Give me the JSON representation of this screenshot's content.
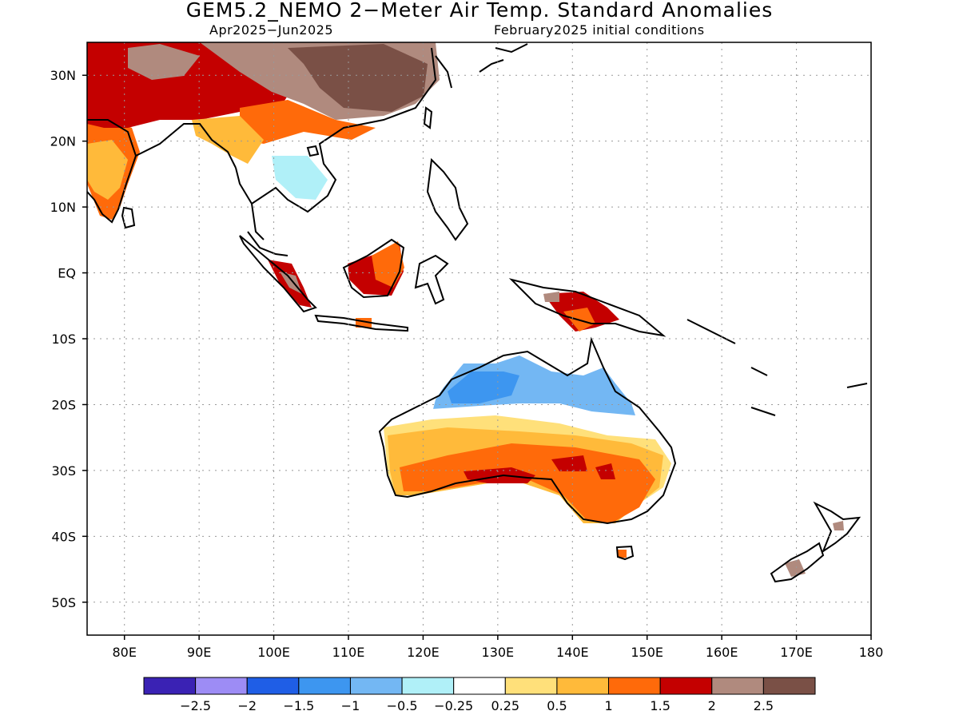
{
  "title": "GEM5.2_NEMO 2−Meter Air Temp. Standard Anomalies",
  "subtitle_left": "Apr2025−Jun2025",
  "subtitle_right": "February2025 initial conditions",
  "map": {
    "lon_range": [
      75,
      180
    ],
    "lat_range": [
      -55,
      35
    ],
    "lon_ticks": [
      "80E",
      "90E",
      "100E",
      "110E",
      "120E",
      "130E",
      "140E",
      "150E",
      "160E",
      "170E",
      "180"
    ],
    "lat_ticks": [
      "30N",
      "20N",
      "10N",
      "EQ",
      "10S",
      "20S",
      "30S",
      "40S",
      "50S"
    ],
    "gridlines": true
  },
  "colorbar": {
    "colors": [
      "#3a22b4",
      "#9d8cf5",
      "#1f5ee6",
      "#3d96f0",
      "#73b7f3",
      "#b0f0f8",
      "#ffffff",
      "#ffe07a",
      "#ffba3a",
      "#ff6a0a",
      "#c40000",
      "#b08a7e",
      "#7a5046"
    ],
    "labels": [
      "−2.5",
      "−2",
      "−1.5",
      "−1",
      "−0.5",
      "−0.25",
      "0.25",
      "0.5",
      "1",
      "1.5",
      "2",
      "2.5"
    ]
  }
}
